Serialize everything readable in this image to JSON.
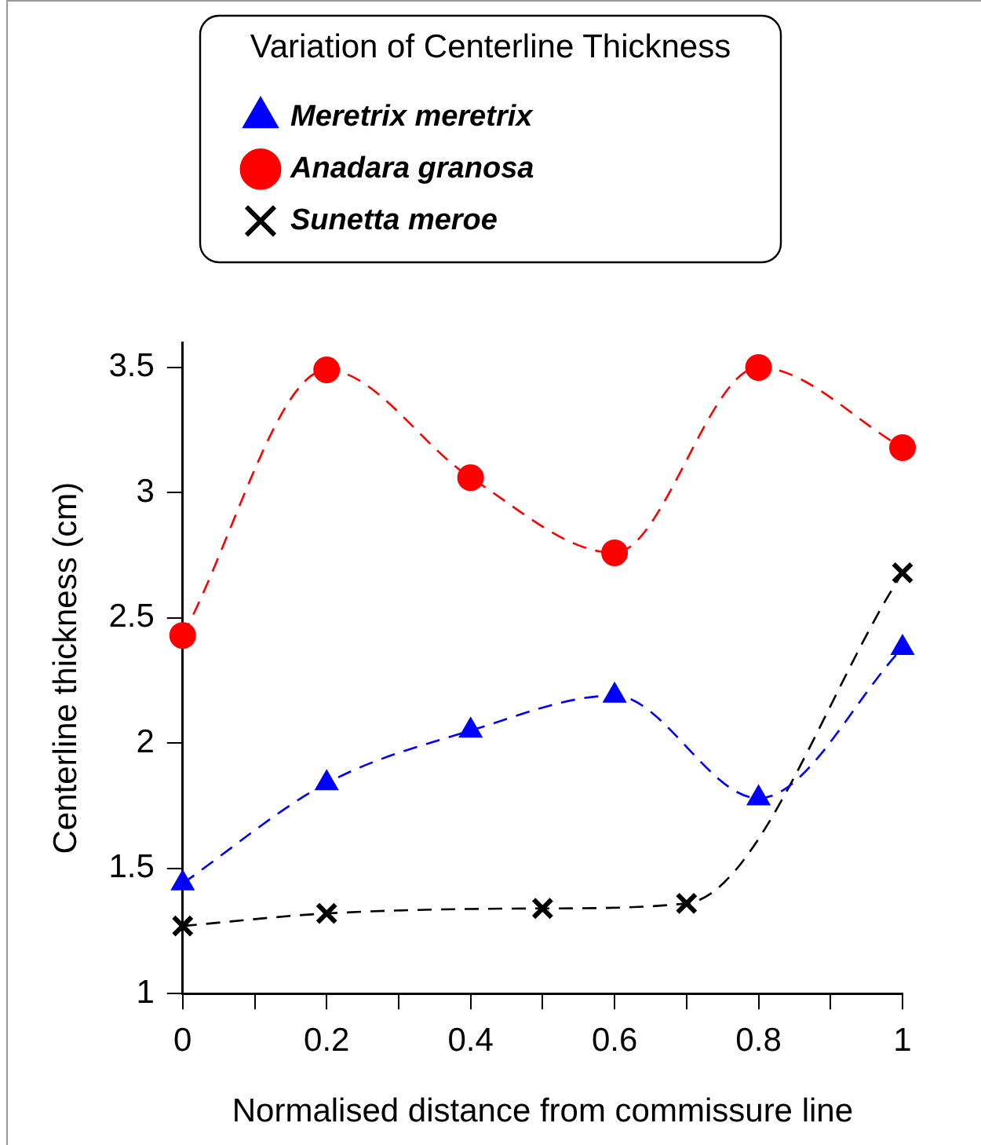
{
  "chart_data": {
    "type": "line",
    "xlabel": "Normalised distance from commissure line",
    "ylabel": "Centerline thickness (cm)",
    "legend_title": "Variation of Centerline Thickness",
    "legend": "top",
    "grid": false,
    "line_style": "dashed",
    "xlim": [
      0,
      1
    ],
    "xticks": [
      0,
      {
        "value": 0.1,
        "label": null
      },
      0.2,
      {
        "value": 0.3,
        "label": null
      },
      0.4,
      {
        "value": 0.5,
        "label": null
      },
      0.6,
      {
        "value": 0.7,
        "label": null
      },
      0.8,
      {
        "value": 0.9,
        "label": null
      },
      1
    ],
    "ylim": [
      1,
      3.6
    ],
    "yticks": [
      1,
      1.5,
      2,
      2.5,
      3,
      3.5
    ],
    "series": [
      {
        "name": "Meretrix meretrix",
        "color": "#0000ff",
        "marker": "triangle",
        "x": [
          0,
          0.2,
          0.4,
          0.6,
          0.8,
          1
        ],
        "values": [
          1.44,
          1.84,
          2.05,
          2.19,
          1.78,
          2.38
        ]
      },
      {
        "name": "Anadara granosa",
        "color": "#ff0000",
        "marker": "circle",
        "x": [
          0,
          0.2,
          0.4,
          0.6,
          0.8,
          1
        ],
        "values": [
          2.43,
          3.49,
          3.06,
          2.76,
          3.5,
          3.18
        ]
      },
      {
        "name": "Sunetta meroe",
        "color": "#000000",
        "marker": "cross",
        "x": [
          0,
          0.2,
          0.5,
          0.7,
          1
        ],
        "values": [
          1.27,
          1.32,
          1.34,
          1.36,
          2.68
        ]
      }
    ]
  }
}
